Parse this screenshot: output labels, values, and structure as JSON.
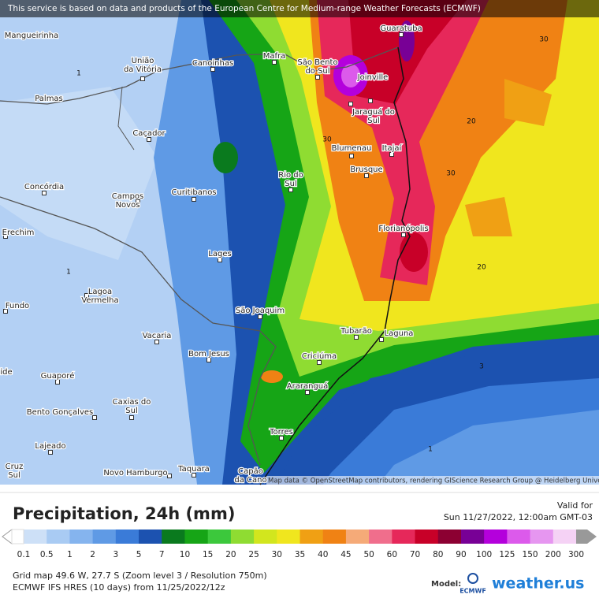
{
  "banner": "This service is based on data and products of the European Centre for Medium-range Weather Forecasts (ECMWF)",
  "cities": [
    {
      "lines": [
        "Mangueirinha"
      ]
    },
    {
      "lines": [
        "União",
        "da Vitória"
      ]
    },
    {
      "lines": [
        "Canoinhas"
      ]
    },
    {
      "lines": [
        "Mafra"
      ]
    },
    {
      "lines": [
        "São Bento",
        "do Sul"
      ]
    },
    {
      "lines": [
        "Guaratuba"
      ]
    },
    {
      "lines": [
        "Joinville"
      ]
    },
    {
      "lines": [
        "Palmas"
      ]
    },
    {
      "lines": [
        "Jaraguá do",
        "Sul"
      ]
    },
    {
      "lines": [
        "Caçador"
      ]
    },
    {
      "lines": [
        "Blumenau"
      ]
    },
    {
      "lines": [
        "Itajaí"
      ]
    },
    {
      "lines": [
        "Brusque"
      ]
    },
    {
      "lines": [
        "Rio do",
        "Sul"
      ]
    },
    {
      "lines": [
        "Concórdia"
      ]
    },
    {
      "lines": [
        "Campos",
        "Novos"
      ]
    },
    {
      "lines": [
        "Curitibanos"
      ]
    },
    {
      "lines": [
        "Erechim"
      ]
    },
    {
      "lines": [
        "Florianópolis"
      ]
    },
    {
      "lines": [
        "Lages"
      ]
    },
    {
      "lines": [
        "Lagoa",
        "Vermelha"
      ]
    },
    {
      "lines": [
        "Fundo"
      ]
    },
    {
      "lines": [
        "São Joaquim"
      ]
    },
    {
      "lines": [
        "Tubarão"
      ]
    },
    {
      "lines": [
        "Laguna"
      ]
    },
    {
      "lines": [
        "Vacaria"
      ]
    },
    {
      "lines": [
        "Bom Jesus"
      ]
    },
    {
      "lines": [
        "Criciúma"
      ]
    },
    {
      "lines": [
        "ide"
      ]
    },
    {
      "lines": [
        "Guaporé"
      ]
    },
    {
      "lines": [
        "Araranguá"
      ]
    },
    {
      "lines": [
        "Caxias do",
        "Sul"
      ]
    },
    {
      "lines": [
        "Bento Gonçalves"
      ]
    },
    {
      "lines": [
        "Torres"
      ]
    },
    {
      "lines": [
        "Lajeado"
      ]
    },
    {
      "lines": [
        "Cruz",
        "Sul"
      ]
    },
    {
      "lines": [
        "Novo Hamburgo"
      ]
    },
    {
      "lines": [
        "Taquara"
      ]
    },
    {
      "lines": [
        "Capão",
        "da Cano"
      ]
    }
  ],
  "contour_labels": [
    "1",
    "1",
    "1",
    "30",
    "30",
    "30",
    "20",
    "20",
    "3"
  ],
  "attribution": "Map data © OpenStreetMap contributors, rendering GIScience Research Group @ Heidelberg University",
  "title": "Precipitation, 24h (mm)",
  "valid_label": "Valid for",
  "valid_time": "Sun 11/27/2022, 12:00am GMT-03",
  "legend": {
    "labels": [
      "0.1",
      "0.5",
      "1",
      "2",
      "3",
      "5",
      "7",
      "10",
      "15",
      "20",
      "25",
      "30",
      "35",
      "40",
      "45",
      "50",
      "60",
      "70",
      "80",
      "90",
      "100",
      "125",
      "150",
      "200",
      "300"
    ],
    "colors": [
      "#cde0f7",
      "#a9cbf3",
      "#85b4ee",
      "#5f9ae5",
      "#3a7bd8",
      "#1c52b0",
      "#0a7a1e",
      "#16a516",
      "#3cc83c",
      "#8fdc32",
      "#d2e61e",
      "#f0e61e",
      "#f0a014",
      "#f08214",
      "#f5aa78",
      "#f06e8c",
      "#e6285a",
      "#c80028",
      "#8c0032",
      "#780096",
      "#b400dc",
      "#dc5aeb",
      "#e696f0",
      "#f5d2f5"
    ]
  },
  "grid_info": "Grid map 49.6 W, 27.7 S (Zoom level 3 / Resolution 750m)",
  "model_info": "ECMWF IFS HRES (10 days) from 11/25/2022/12z",
  "model_label": "Model:",
  "model_name": "ECMWF",
  "brand": "weather.us"
}
